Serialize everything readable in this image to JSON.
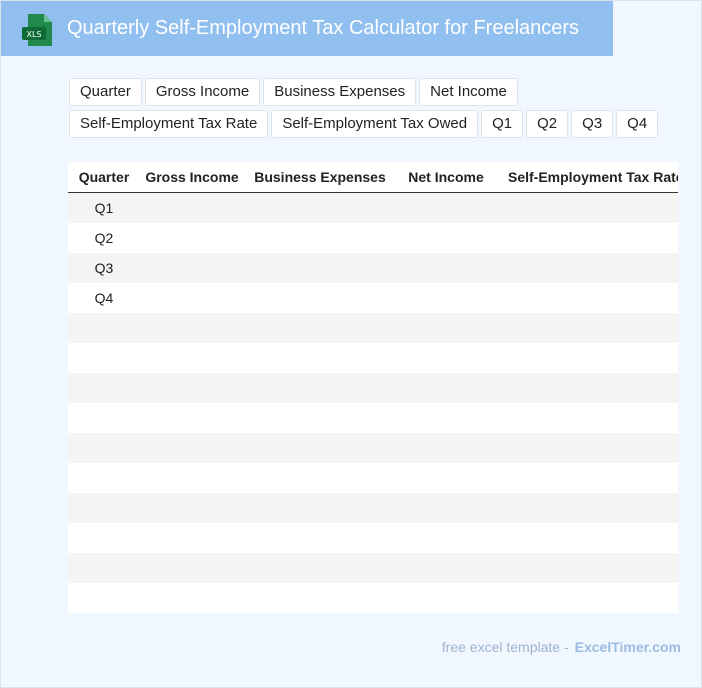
{
  "header": {
    "title": "Quarterly Self-Employment Tax Calculator for Freelancers",
    "icon_text": "XLS",
    "bg_color": "#90bff0"
  },
  "chips": {
    "row1": [
      "Quarter",
      "Gross Income",
      "Business Expenses",
      "Net Income"
    ],
    "row2": [
      "Self-Employment Tax Rate",
      "Self-Employment Tax Owed",
      "Q1",
      "Q2",
      "Q3",
      "Q4"
    ]
  },
  "table": {
    "columns": [
      "Quarter",
      "Gross Income",
      "Business Expenses",
      "Net Income",
      "Self-Employment Tax Rate"
    ],
    "rows": [
      {
        "index": "0",
        "quarter": "Q1"
      },
      {
        "index": "1",
        "quarter": "Q2"
      },
      {
        "index": "2",
        "quarter": "Q3"
      },
      {
        "index": "3",
        "quarter": "Q4"
      },
      {
        "index": "4",
        "quarter": ""
      },
      {
        "index": "5",
        "quarter": ""
      },
      {
        "index": "6",
        "quarter": ""
      },
      {
        "index": "7",
        "quarter": ""
      },
      {
        "index": "8",
        "quarter": ""
      },
      {
        "index": "9",
        "quarter": ""
      },
      {
        "index": "0",
        "quarter": ""
      },
      {
        "index": "1",
        "quarter": ""
      },
      {
        "index": "2",
        "quarter": ""
      },
      {
        "index": "3",
        "quarter": ""
      }
    ]
  },
  "footer": {
    "text": "free excel template -",
    "brand": "ExcelTimer.com"
  }
}
